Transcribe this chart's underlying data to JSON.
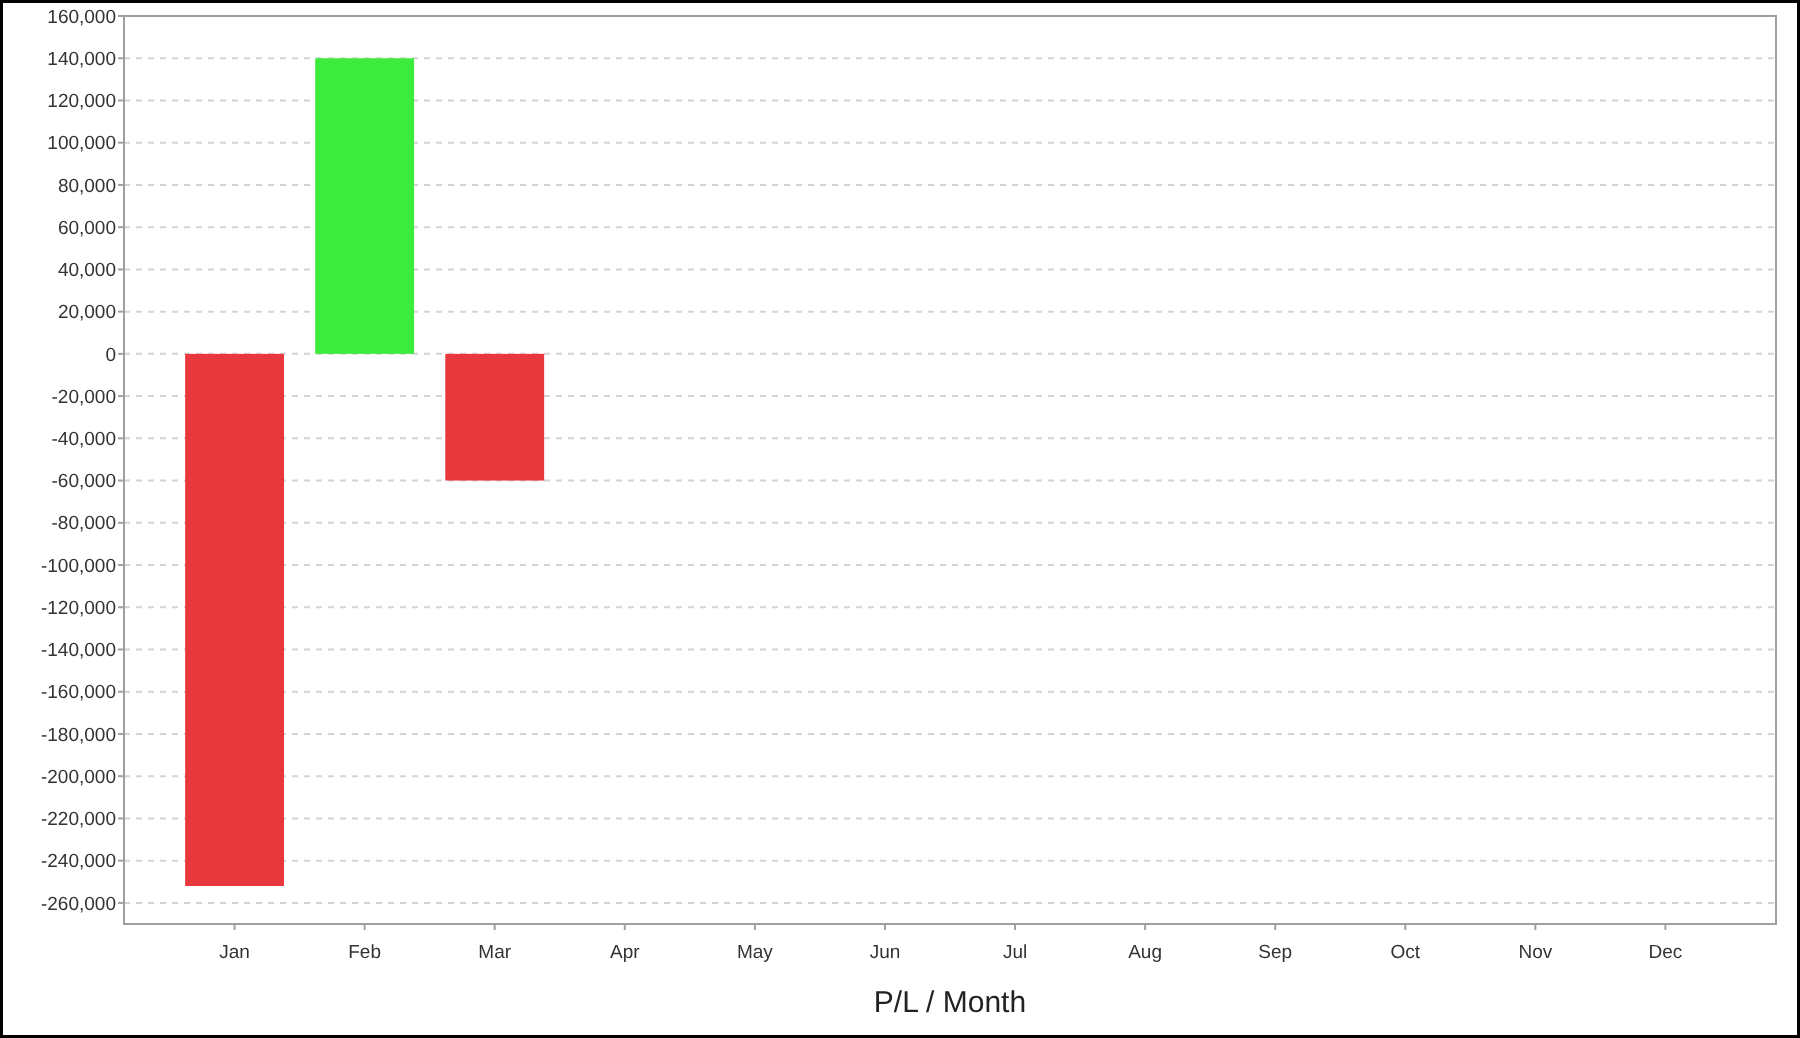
{
  "chart_data": {
    "type": "bar",
    "xlabel": "P/L / Month",
    "categories": [
      "Jan",
      "Feb",
      "Mar",
      "Apr",
      "May",
      "Jun",
      "Jul",
      "Aug",
      "Sep",
      "Oct",
      "Nov",
      "Dec"
    ],
    "values": [
      -252000,
      140000,
      -60000,
      null,
      null,
      null,
      null,
      null,
      null,
      null,
      null,
      null
    ],
    "colors": [
      "#e8383d",
      "#3deb3d",
      "#e8383d",
      null,
      null,
      null,
      null,
      null,
      null,
      null,
      null,
      null
    ],
    "ylim": [
      -270000,
      160000
    ],
    "yticks": [
      {
        "value": -260000,
        "label": "-260,000"
      },
      {
        "value": -240000,
        "label": "-240,000"
      },
      {
        "value": -220000,
        "label": "-220,000"
      },
      {
        "value": -200000,
        "label": "-200,000"
      },
      {
        "value": -180000,
        "label": "-180,000"
      },
      {
        "value": -160000,
        "label": "-160,000"
      },
      {
        "value": -140000,
        "label": "-140,000"
      },
      {
        "value": -120000,
        "label": "-120,000"
      },
      {
        "value": -100000,
        "label": "-100,000"
      },
      {
        "value": -80000,
        "label": "-80,000"
      },
      {
        "value": -60000,
        "label": "-60,000"
      },
      {
        "value": -40000,
        "label": "-40,000"
      },
      {
        "value": -20000,
        "label": "-20,000"
      },
      0,
      {
        "value": 20000,
        "label": "20,000"
      },
      {
        "value": 40000,
        "label": "40,000"
      },
      {
        "value": 60000,
        "label": "60,000"
      },
      {
        "value": 80000,
        "label": "80,000"
      },
      {
        "value": 100000,
        "label": "100,000"
      },
      {
        "value": 120000,
        "label": "120,000"
      },
      {
        "value": 140000,
        "label": "140,000"
      },
      {
        "value": 160000,
        "label": "160,000"
      }
    ],
    "grid": "y"
  }
}
